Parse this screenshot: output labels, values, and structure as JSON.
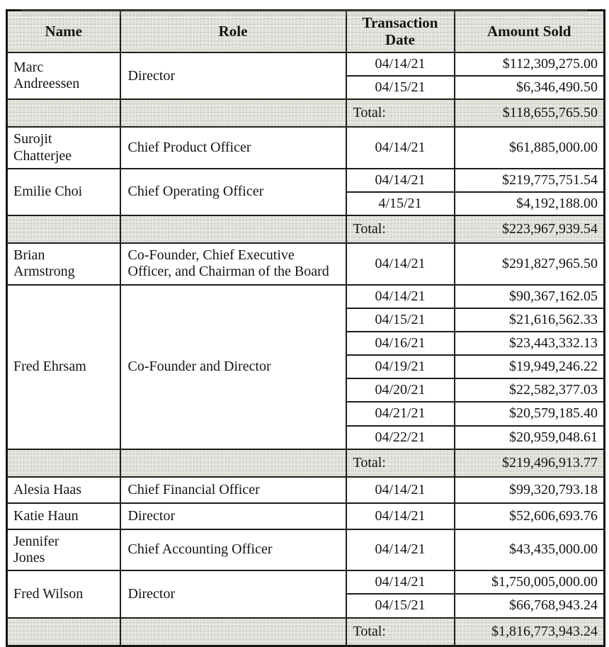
{
  "table": {
    "columns": [
      {
        "key": "name",
        "label": "Name"
      },
      {
        "key": "role",
        "label": "Role"
      },
      {
        "key": "date",
        "label": "Transaction Date"
      },
      {
        "key": "amount",
        "label": "Amount Sold"
      }
    ],
    "groups": [
      {
        "name": "Marc\nAndreessen",
        "role": "Director",
        "transactions": [
          {
            "date": "04/14/21",
            "amount": "$112,309,275.00"
          },
          {
            "date": "04/15/21",
            "amount": "$6,346,490.50"
          }
        ],
        "total": {
          "label": "Total:",
          "amount": "$118,655,765.50"
        }
      },
      {
        "name": "Surojit\nChatterjee",
        "role": "Chief Product Officer",
        "transactions": [
          {
            "date": "04/14/21",
            "amount": "$61,885,000.00"
          }
        ]
      },
      {
        "name": "Emilie Choi",
        "role": "Chief Operating Officer",
        "transactions": [
          {
            "date": "04/14/21",
            "amount": "$219,775,751.54"
          },
          {
            "date": "4/15/21",
            "amount": "$4,192,188.00"
          }
        ],
        "total": {
          "label": "Total:",
          "amount": "$223,967,939.54"
        }
      },
      {
        "name": "Brian\nArmstrong",
        "role": "Co-Founder, Chief Executive Officer, and Chairman of the Board",
        "transactions": [
          {
            "date": "04/14/21",
            "amount": "$291,827,965.50"
          }
        ]
      },
      {
        "name": "Fred Ehrsam",
        "role": "Co-Founder and Director",
        "transactions": [
          {
            "date": "04/14/21",
            "amount": "$90,367,162.05"
          },
          {
            "date": "04/15/21",
            "amount": "$21,616,562.33"
          },
          {
            "date": "04/16/21",
            "amount": "$23,443,332.13"
          },
          {
            "date": "04/19/21",
            "amount": "$19,949,246.22"
          },
          {
            "date": "04/20/21",
            "amount": "$22,582,377.03"
          },
          {
            "date": "04/21/21",
            "amount": "$20,579,185.40"
          },
          {
            "date": "04/22/21",
            "amount": "$20,959,048.61"
          }
        ],
        "total": {
          "label": "Total:",
          "amount": "$219,496,913.77"
        }
      },
      {
        "name": "Alesia Haas",
        "role": "Chief Financial Officer",
        "transactions": [
          {
            "date": "04/14/21",
            "amount": "$99,320,793.18"
          }
        ]
      },
      {
        "name": "Katie Haun",
        "role": "Director",
        "transactions": [
          {
            "date": "04/14/21",
            "amount": "$52,606,693.76"
          }
        ]
      },
      {
        "name": "Jennifer\nJones",
        "role": "Chief Accounting Officer",
        "transactions": [
          {
            "date": "04/14/21",
            "amount": "$43,435,000.00"
          }
        ]
      },
      {
        "name": "Fred Wilson",
        "role": "Director",
        "transactions": [
          {
            "date": "04/14/21",
            "amount": "$1,750,005,000.00"
          },
          {
            "date": "04/15/21",
            "amount": "$66,768,943.24"
          }
        ],
        "total": {
          "label": "Total:",
          "amount": "$1,816,773,943.24"
        }
      }
    ]
  },
  "colors": {
    "border": "#1d1d1d",
    "shade": "#eae8e2",
    "text": "#141414"
  }
}
